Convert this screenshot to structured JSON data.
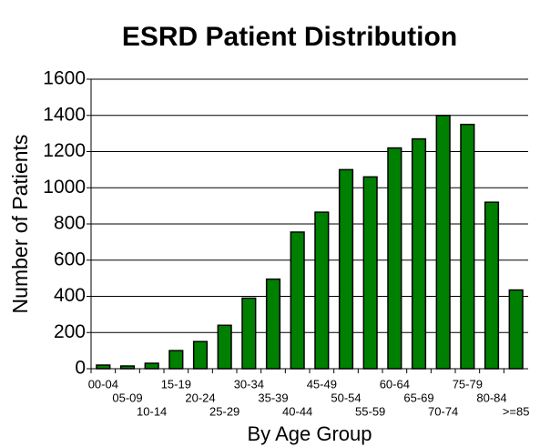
{
  "chart_data": {
    "type": "bar",
    "title": "ESRD Patient Distribution",
    "x_label": "By Age Group",
    "y_label": "Number of Patients",
    "categories": [
      "00-04",
      "05-09",
      "10-14",
      "15-19",
      "20-24",
      "25-29",
      "30-34",
      "35-39",
      "40-44",
      "45-49",
      "50-54",
      "55-59",
      "60-64",
      "65-69",
      "70-74",
      "75-79",
      "80-84",
      ">=85"
    ],
    "values": [
      20,
      15,
      30,
      100,
      150,
      240,
      390,
      495,
      755,
      865,
      1100,
      1060,
      1220,
      1270,
      1400,
      1350,
      920,
      435
    ],
    "color": "#008000",
    "ylim": [
      0,
      1600
    ],
    "yticks": [
      0,
      200,
      400,
      600,
      800,
      1000,
      1200,
      1400,
      1600
    ],
    "grid": true
  }
}
